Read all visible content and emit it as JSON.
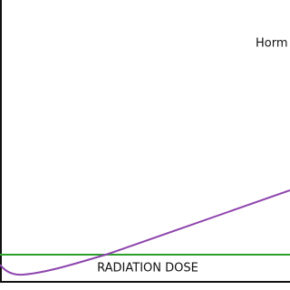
{
  "curve_label": "Horm",
  "x_axis_label": "RADIATION DOSE"
}
